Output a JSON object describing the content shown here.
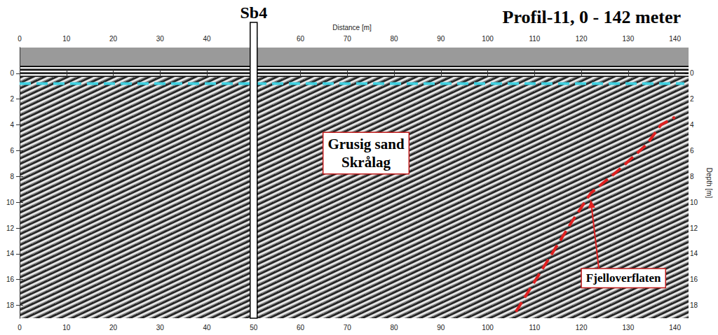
{
  "chart_data": {
    "type": "line",
    "title": "Profil-11, 0 - 142 meter",
    "x_label": "Distance [m]",
    "y_label": "Depth [m]",
    "xlim": [
      0,
      142
    ],
    "xticks": [
      0,
      10,
      20,
      30,
      40,
      50,
      60,
      70,
      80,
      90,
      100,
      110,
      120,
      130,
      140
    ],
    "ylim": [
      19,
      -2
    ],
    "yticks": [
      0,
      2,
      4,
      6,
      8,
      10,
      12,
      14,
      16,
      18
    ],
    "grid": false,
    "series": [
      {
        "color": "#3fd0e0",
        "line_style": "dashed",
        "x": [
          0,
          142
        ],
        "values": [
          0.8,
          0.8
        ]
      },
      {
        "color": "#e02020",
        "line_style": "dashed",
        "x": [
          106,
          112,
          118,
          122,
          128,
          134,
          137,
          140
        ],
        "values": [
          18.5,
          15,
          11.5,
          9.3,
          7.5,
          5.5,
          4,
          3.4
        ]
      }
    ],
    "markers": [
      {
        "text": "Sb4",
        "x": 50
      }
    ],
    "annotations": [
      {
        "text": "Grusig sand\nSkrålag",
        "x": 74,
        "y": 6.2
      },
      {
        "text": "Fjelloverflaten",
        "x": 129,
        "y": 15.9,
        "arrow_to": [
          122,
          9.8
        ]
      }
    ]
  }
}
